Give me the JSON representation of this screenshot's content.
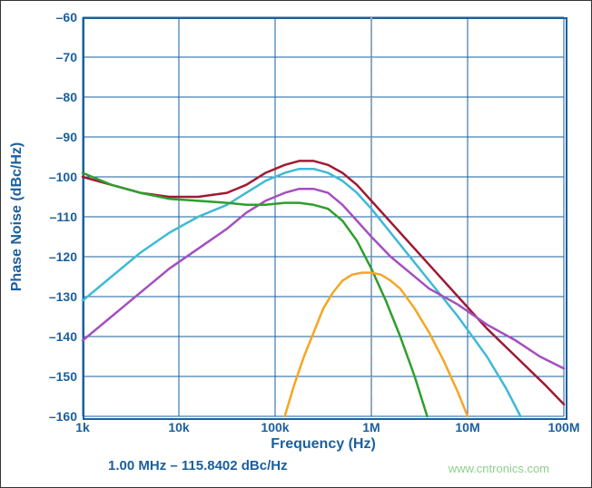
{
  "chart": {
    "type": "line",
    "title": null,
    "xlabel": "Frequency (Hz)",
    "ylabel": "Phase Noise (dBc/Hz)",
    "x_scale": "log",
    "y_scale": "linear",
    "xlim_log10": [
      3,
      8
    ],
    "ylim": [
      -160,
      -60
    ],
    "x_ticks": [
      {
        "log10": 3,
        "label": "1k"
      },
      {
        "log10": 4,
        "label": "10k"
      },
      {
        "log10": 5,
        "label": "100k"
      },
      {
        "log10": 6,
        "label": "1M"
      },
      {
        "log10": 7,
        "label": "10M"
      },
      {
        "log10": 8,
        "label": "100M"
      }
    ],
    "y_ticks": [
      -60,
      -70,
      -80,
      -90,
      -100,
      -110,
      -120,
      -130,
      -140,
      -150,
      -160
    ],
    "xtick_fontsize": 14,
    "ytick_fontsize": 14,
    "label_fontsize": 16,
    "axis_color": "#1a5f9e",
    "grid_color": "#1a5f9e",
    "background_color": "#ffffff",
    "marker_line": {
      "x_log10": 6,
      "color": "#9aa7b5",
      "dash": "6 5",
      "width": 2
    },
    "line_width": 2.5,
    "series": [
      {
        "name": "trace-maroon",
        "color": "#9e1b34",
        "points": [
          [
            3.0,
            -100
          ],
          [
            3.3,
            -102
          ],
          [
            3.6,
            -104
          ],
          [
            3.9,
            -105
          ],
          [
            4.2,
            -105
          ],
          [
            4.5,
            -104
          ],
          [
            4.7,
            -102
          ],
          [
            4.9,
            -99
          ],
          [
            5.1,
            -97
          ],
          [
            5.25,
            -96
          ],
          [
            5.4,
            -96
          ],
          [
            5.55,
            -97
          ],
          [
            5.7,
            -99
          ],
          [
            5.85,
            -102
          ],
          [
            6.0,
            -106
          ],
          [
            6.3,
            -114
          ],
          [
            6.6,
            -122
          ],
          [
            6.9,
            -130
          ],
          [
            7.2,
            -138
          ],
          [
            7.5,
            -145
          ],
          [
            7.8,
            -152
          ],
          [
            8.0,
            -157
          ]
        ]
      },
      {
        "name": "trace-cyan",
        "color": "#3fb9d6",
        "points": [
          [
            3.0,
            -131
          ],
          [
            3.3,
            -125
          ],
          [
            3.6,
            -119
          ],
          [
            3.9,
            -114
          ],
          [
            4.2,
            -110
          ],
          [
            4.5,
            -107
          ],
          [
            4.7,
            -104
          ],
          [
            4.9,
            -101
          ],
          [
            5.1,
            -99
          ],
          [
            5.25,
            -98
          ],
          [
            5.4,
            -98
          ],
          [
            5.55,
            -99
          ],
          [
            5.7,
            -101
          ],
          [
            5.85,
            -104
          ],
          [
            6.0,
            -108
          ],
          [
            6.3,
            -117
          ],
          [
            6.6,
            -126
          ],
          [
            6.9,
            -135
          ],
          [
            7.2,
            -145
          ],
          [
            7.4,
            -153
          ],
          [
            7.55,
            -160
          ]
        ]
      },
      {
        "name": "trace-purple",
        "color": "#a44fbf",
        "points": [
          [
            3.0,
            -141
          ],
          [
            3.3,
            -135
          ],
          [
            3.6,
            -129
          ],
          [
            3.9,
            -123
          ],
          [
            4.2,
            -118
          ],
          [
            4.5,
            -113
          ],
          [
            4.7,
            -109
          ],
          [
            4.9,
            -106
          ],
          [
            5.1,
            -104
          ],
          [
            5.25,
            -103
          ],
          [
            5.4,
            -103
          ],
          [
            5.55,
            -104
          ],
          [
            5.7,
            -107
          ],
          [
            5.85,
            -111
          ],
          [
            6.0,
            -115
          ],
          [
            6.2,
            -120
          ],
          [
            6.4,
            -124
          ],
          [
            6.6,
            -128
          ],
          [
            6.9,
            -132
          ],
          [
            7.2,
            -137
          ],
          [
            7.5,
            -141
          ],
          [
            7.75,
            -145
          ],
          [
            8.0,
            -148
          ]
        ]
      },
      {
        "name": "trace-green",
        "color": "#2e9e2e",
        "points": [
          [
            3.0,
            -99
          ],
          [
            3.3,
            -102
          ],
          [
            3.6,
            -104
          ],
          [
            3.9,
            -105.5
          ],
          [
            4.2,
            -106
          ],
          [
            4.5,
            -106.5
          ],
          [
            4.7,
            -107
          ],
          [
            4.9,
            -107
          ],
          [
            5.1,
            -106.5
          ],
          [
            5.25,
            -106.5
          ],
          [
            5.4,
            -107
          ],
          [
            5.55,
            -108
          ],
          [
            5.7,
            -111
          ],
          [
            5.85,
            -116
          ],
          [
            6.0,
            -123
          ],
          [
            6.15,
            -131
          ],
          [
            6.3,
            -140
          ],
          [
            6.45,
            -150
          ],
          [
            6.58,
            -160
          ]
        ]
      },
      {
        "name": "trace-orange",
        "color": "#f5a623",
        "points": [
          [
            5.1,
            -160
          ],
          [
            5.2,
            -152
          ],
          [
            5.3,
            -145
          ],
          [
            5.4,
            -139
          ],
          [
            5.5,
            -133
          ],
          [
            5.6,
            -129
          ],
          [
            5.7,
            -126
          ],
          [
            5.8,
            -124.5
          ],
          [
            5.9,
            -124
          ],
          [
            6.0,
            -124
          ],
          [
            6.1,
            -124.5
          ],
          [
            6.2,
            -126
          ],
          [
            6.3,
            -128
          ],
          [
            6.45,
            -133
          ],
          [
            6.6,
            -139
          ],
          [
            6.75,
            -146
          ],
          [
            6.9,
            -154
          ],
          [
            7.0,
            -160
          ]
        ]
      }
    ]
  },
  "readout": {
    "text": "1.00 MHz – 115.8402 dBc/Hz"
  },
  "watermark": {
    "text": "www.cntronics.com",
    "color": "#8ccf8c"
  }
}
